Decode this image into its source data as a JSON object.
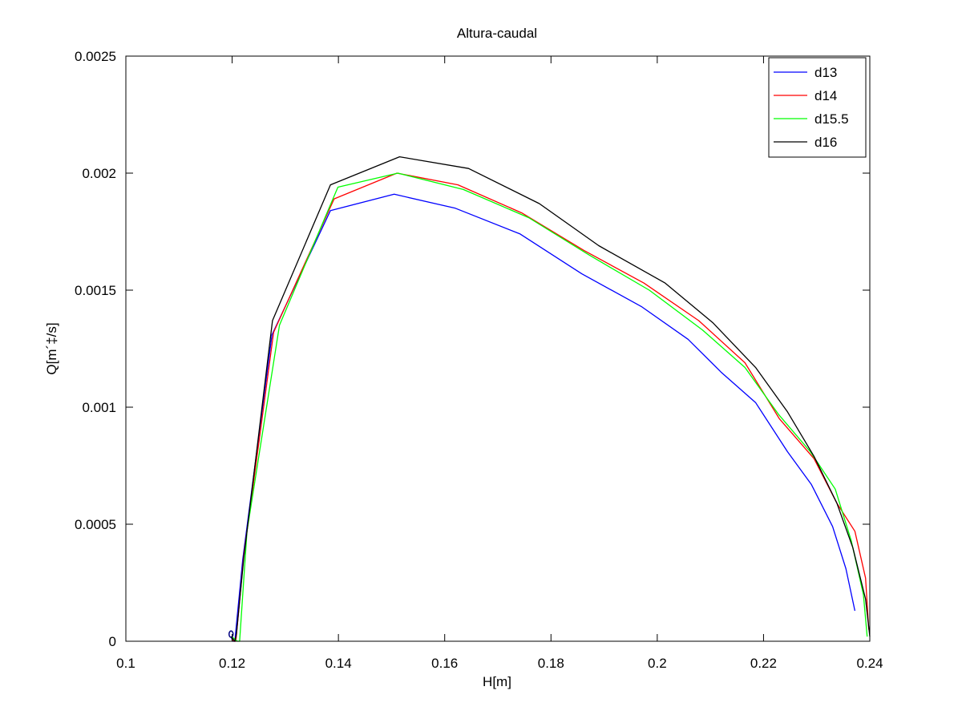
{
  "chart_data": {
    "type": "line",
    "title": "Altura-caudal",
    "xlabel": "H[m]",
    "ylabel": "Q[m´‡/s]",
    "xlim": [
      0.1,
      0.24
    ],
    "ylim": [
      0,
      0.0025
    ],
    "x_ticks": [
      0.1,
      0.12,
      0.14,
      0.16,
      0.18,
      0.2,
      0.22,
      0.24
    ],
    "x_tick_labels": [
      "0.1",
      "0.12",
      "0.14",
      "0.16",
      "0.18",
      "0.2",
      "0.22",
      "0.24"
    ],
    "y_ticks": [
      0,
      0.0005,
      0.001,
      0.0015,
      0.002,
      0.0025
    ],
    "y_tick_labels": [
      "0",
      "0.0005",
      "0.001",
      "0.0015",
      "0.002",
      "0.0025"
    ],
    "grid": false,
    "legend_position": "top-right",
    "series": [
      {
        "name": "d13",
        "color": "#0000ff",
        "points": [
          [
            0.1198,
            2e-05
          ],
          [
            0.1201,
            0.0
          ],
          [
            0.1205,
            0.0
          ],
          [
            0.122,
            0.00035
          ],
          [
            0.1275,
            0.00131
          ],
          [
            0.1385,
            0.00184
          ],
          [
            0.1505,
            0.00191
          ],
          [
            0.162,
            0.00185
          ],
          [
            0.1742,
            0.00174
          ],
          [
            0.1858,
            0.00157
          ],
          [
            0.197,
            0.00143
          ],
          [
            0.2058,
            0.00129
          ],
          [
            0.212,
            0.00115
          ],
          [
            0.2185,
            0.00102
          ],
          [
            0.2245,
            0.00081
          ],
          [
            0.229,
            0.00067
          ],
          [
            0.233,
            0.00049
          ],
          [
            0.2355,
            0.00031
          ],
          [
            0.2372,
            0.00013
          ]
        ]
      },
      {
        "name": "d14",
        "color": "#ff0000",
        "points": [
          [
            0.1198,
            2e-05
          ],
          [
            0.1203,
            0.0
          ],
          [
            0.1207,
            0.0
          ],
          [
            0.1222,
            0.00037
          ],
          [
            0.1278,
            0.00132
          ],
          [
            0.1392,
            0.00189
          ],
          [
            0.151,
            0.002
          ],
          [
            0.1625,
            0.00195
          ],
          [
            0.1745,
            0.00183
          ],
          [
            0.1862,
            0.00167
          ],
          [
            0.1975,
            0.00153
          ],
          [
            0.2078,
            0.00137
          ],
          [
            0.2165,
            0.00119
          ],
          [
            0.223,
            0.00095
          ],
          [
            0.2295,
            0.00078
          ],
          [
            0.2338,
            0.00059
          ],
          [
            0.2372,
            0.00047
          ],
          [
            0.2392,
            0.00027
          ],
          [
            0.2398,
            5e-05
          ]
        ]
      },
      {
        "name": "d15.5",
        "color": "#00ff00",
        "points": [
          [
            0.1199,
            2e-05
          ],
          [
            0.121,
            0.0
          ],
          [
            0.1214,
            0.0
          ],
          [
            0.1228,
            0.00047
          ],
          [
            0.1289,
            0.00135
          ],
          [
            0.1399,
            0.00194
          ],
          [
            0.1512,
            0.002
          ],
          [
            0.1635,
            0.00193
          ],
          [
            0.1758,
            0.00181
          ],
          [
            0.1872,
            0.00165
          ],
          [
            0.1985,
            0.0015
          ],
          [
            0.2085,
            0.00133
          ],
          [
            0.2165,
            0.00117
          ],
          [
            0.2228,
            0.00097
          ],
          [
            0.2288,
            0.00081
          ],
          [
            0.2335,
            0.00065
          ],
          [
            0.2365,
            0.00043
          ],
          [
            0.2388,
            0.0002
          ],
          [
            0.2395,
            2e-05
          ]
        ]
      },
      {
        "name": "d16",
        "color": "#000000",
        "points": [
          [
            0.1198,
            2e-05
          ],
          [
            0.1205,
            0.0
          ],
          [
            0.1208,
            3e-05
          ],
          [
            0.1222,
            0.00036
          ],
          [
            0.1276,
            0.00137
          ],
          [
            0.1385,
            0.00195
          ],
          [
            0.1515,
            0.00207
          ],
          [
            0.1645,
            0.00202
          ],
          [
            0.1778,
            0.00187
          ],
          [
            0.189,
            0.00169
          ],
          [
            0.2015,
            0.00153
          ],
          [
            0.2105,
            0.00136
          ],
          [
            0.2185,
            0.00117
          ],
          [
            0.2245,
            0.00098
          ],
          [
            0.2295,
            0.00079
          ],
          [
            0.2338,
            0.00059
          ],
          [
            0.2368,
            0.0004
          ],
          [
            0.2392,
            0.00018
          ],
          [
            0.24,
            2e-05
          ]
        ]
      }
    ]
  }
}
